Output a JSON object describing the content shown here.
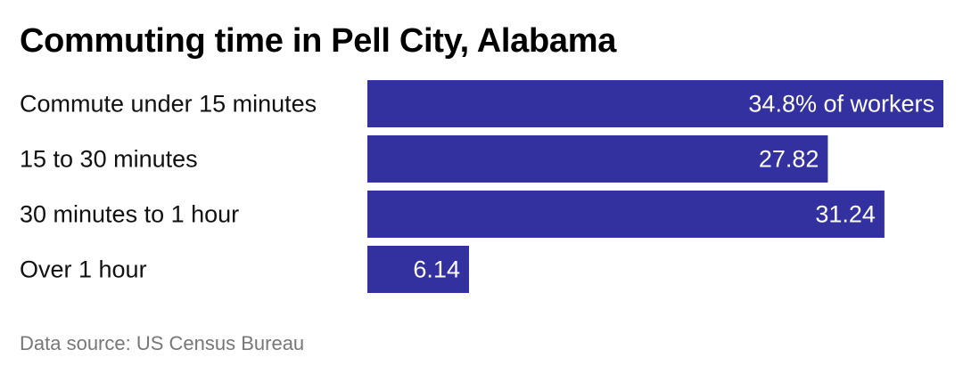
{
  "title": "Commuting time in Pell City, Alabama",
  "source": "Data source: US Census Bureau",
  "colors": {
    "bar": "#3330a0",
    "bar_label": "#ffffff",
    "text": "#111111",
    "source_text": "#777777"
  },
  "chart_data": {
    "type": "bar",
    "orientation": "horizontal",
    "title": "Commuting time in Pell City, Alabama",
    "categories": [
      "Commute under 15 minutes",
      "15 to 30 minutes",
      "30 minutes to 1 hour",
      "Over 1 hour"
    ],
    "values": [
      34.8,
      27.82,
      31.24,
      6.14
    ],
    "value_labels": [
      "34.8% of workers",
      "27.82",
      "31.24",
      "6.14"
    ],
    "xlim": [
      0,
      34.8
    ],
    "grid": false,
    "legend": "none"
  }
}
